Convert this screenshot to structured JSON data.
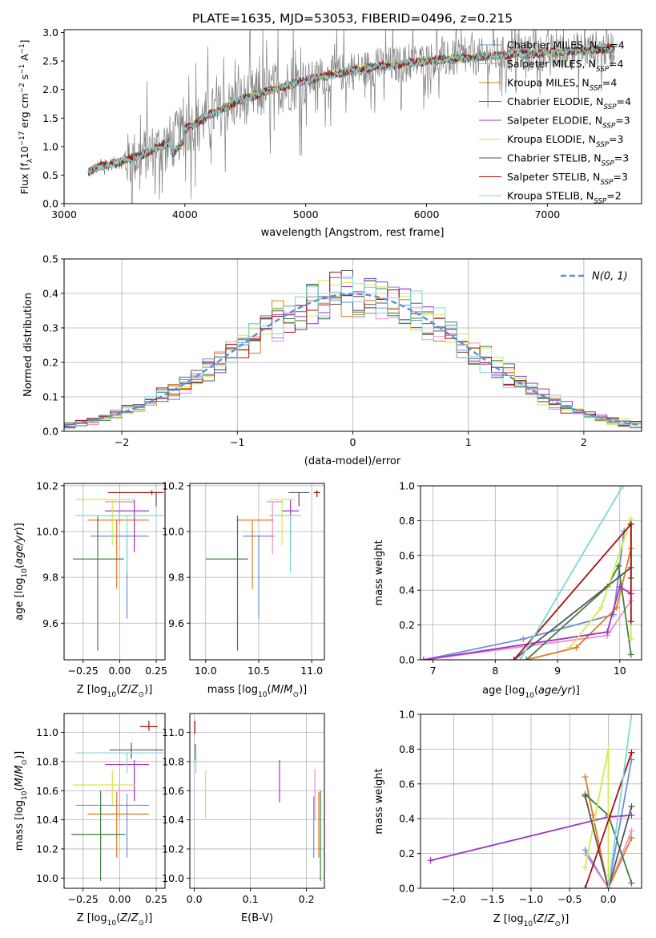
{
  "figure": {
    "title": "PLATE=1635, MJD=53053, FIBERID=0496, z=0.215"
  },
  "colors": {
    "Chabrier MILES": "#6a8fd6",
    "Salpeter MILES": "#ee8ed0",
    "Kroupa MILES": "#e07a1f",
    "Chabrier ELODIE": "#3f7f3f",
    "Salpeter ELODIE": "#a032c0",
    "Kroupa ELODIE": "#d2ea4a",
    "Chabrier STELIB": "#555555",
    "Salpeter STELIB": "#a81010",
    "Kroupa STELIB": "#7dd8d8",
    "data": "#808080",
    "normal": "#5b8fd6"
  },
  "chart_data": [
    {
      "id": "spectrum",
      "type": "line",
      "xlabel": "wavelength [Angstrom, rest frame]",
      "ylabel": "Flux [fλ10⁻¹⁷ erg cm⁻² s⁻¹ A⁻¹]",
      "xlim": [
        3000,
        7780
      ],
      "ylim": [
        0,
        3.05
      ],
      "xticks": [
        3000,
        4000,
        5000,
        6000,
        7000
      ],
      "yticks": [
        0.0,
        0.5,
        1.0,
        1.5,
        2.0,
        2.5,
        3.0
      ],
      "legend_position": "top-right",
      "legend": [
        "Chabrier MILES, N_SSP=4",
        "Salpeter MILES, N_SSP=4",
        "Kroupa MILES, N_SSP=4",
        "Chabrier ELODIE, N_SSP=4",
        "Salpeter ELODIE, N_SSP=3",
        "Kroupa ELODIE, N_SSP=3",
        "Chabrier STELIB, N_SSP=3",
        "Salpeter STELIB, N_SSP=3",
        "Kroupa STELIB, N_SSP=2"
      ],
      "continuum_model": {
        "x": [
          3200,
          3300,
          3500,
          3700,
          3900,
          4000,
          4200,
          4500,
          4800,
          5000,
          5300,
          5600,
          6000,
          6300,
          6600,
          7000,
          7400,
          7560
        ],
        "y": [
          0.55,
          0.65,
          0.75,
          0.9,
          1.1,
          1.3,
          1.55,
          1.85,
          2.05,
          2.15,
          2.3,
          2.4,
          2.5,
          2.55,
          2.6,
          2.65,
          2.7,
          2.72
        ]
      },
      "data_noise_amplitude": 0.6,
      "data_x_range": [
        3200,
        7560
      ]
    },
    {
      "id": "residuals",
      "type": "histogram",
      "xlabel": "(data-model)/error",
      "ylabel": "Normed distribution",
      "xlim": [
        -2.5,
        2.5
      ],
      "ylim": [
        0,
        0.5
      ],
      "xticks": [
        -2,
        -1,
        0,
        1,
        2
      ],
      "yticks": [
        0.0,
        0.1,
        0.2,
        0.3,
        0.4,
        0.5
      ],
      "legend": [
        "𝒩(0, 1)"
      ],
      "legend_position": "top-right",
      "bin_width": 0.1
    },
    {
      "id": "age_vs_Z",
      "type": "errorbar",
      "xlabel": "Z [log₁₀(Z/Z⊙)]",
      "ylabel": "age  [log₁₀(age/yr)]",
      "xlim": [
        -0.38,
        0.31
      ],
      "ylim": [
        9.44,
        10.21
      ],
      "xticks": [
        -0.25,
        0.0,
        0.25
      ],
      "xticklabels": [
        "−0.25",
        "0.00",
        "0.25"
      ],
      "yticks": [
        9.6,
        9.8,
        10.0,
        10.2
      ],
      "points": [
        {
          "model": "Chabrier MILES",
          "x": 0.05,
          "xerr": [
            0.25,
            0.15
          ],
          "y": 9.98,
          "yerr": [
            0.36,
            0.0
          ]
        },
        {
          "model": "Salpeter MILES",
          "x": 0.0,
          "xerr": [
            0.1,
            0.1
          ],
          "y": 10.13,
          "yerr": [
            0.1,
            0.0
          ]
        },
        {
          "model": "Kroupa MILES",
          "x": -0.02,
          "xerr": [
            0.2,
            0.22
          ],
          "y": 10.05,
          "yerr": [
            0.3,
            0.0
          ]
        },
        {
          "model": "Chabrier ELODIE",
          "x": -0.15,
          "xerr": [
            0.17,
            0.18
          ],
          "y": 9.88,
          "yerr": [
            0.4,
            0.19
          ]
        },
        {
          "model": "Salpeter ELODIE",
          "x": 0.1,
          "xerr": [
            0.2,
            0.1
          ],
          "y": 10.09,
          "yerr": [
            0.18,
            0.05
          ]
        },
        {
          "model": "Kroupa ELODIE",
          "x": -0.05,
          "xerr": [
            0.25,
            0.15
          ],
          "y": 10.14,
          "yerr": [
            0.2,
            0.0
          ]
        },
        {
          "model": "Chabrier STELIB",
          "x": 0.25,
          "xerr": [
            0.05,
            0.05
          ],
          "y": 10.17,
          "yerr": [
            0.06,
            0.0
          ]
        },
        {
          "model": "Salpeter STELIB",
          "x": 0.22,
          "xerr": [
            0.3,
            0.08
          ],
          "y": 10.17,
          "yerr": [
            0.01,
            0.01
          ]
        },
        {
          "model": "Kroupa STELIB",
          "x": 0.05,
          "xerr": [
            0.35,
            0.25
          ],
          "y": 10.07,
          "yerr": [
            0.25,
            0.0
          ]
        }
      ]
    },
    {
      "id": "age_vs_mass",
      "type": "errorbar",
      "xlabel": "mass [log₁₀(M/M⊙)]",
      "ylabel": "",
      "xlim": [
        9.85,
        11.12
      ],
      "ylim": [
        9.44,
        10.21
      ],
      "xticks": [
        10.0,
        10.5,
        11.0
      ],
      "xticklabels": [
        "10.0",
        "10.5",
        "11.0"
      ],
      "yticks": [
        9.6,
        9.8,
        10.0,
        10.2
      ],
      "points": [
        {
          "model": "Chabrier MILES",
          "x": 10.5,
          "xerr": [
            0.15,
            0.15
          ],
          "y": 9.98,
          "yerr": [
            0.36,
            0.0
          ]
        },
        {
          "model": "Salpeter MILES",
          "x": 10.63,
          "xerr": [
            0.05,
            0.1
          ],
          "y": 10.13,
          "yerr": [
            0.23,
            0.0
          ]
        },
        {
          "model": "Kroupa MILES",
          "x": 10.44,
          "xerr": [
            0.15,
            0.2
          ],
          "y": 10.05,
          "yerr": [
            0.3,
            0.0
          ]
        },
        {
          "model": "Chabrier ELODIE",
          "x": 10.3,
          "xerr": [
            0.3,
            0.1
          ],
          "y": 9.88,
          "yerr": [
            0.4,
            0.19
          ]
        },
        {
          "model": "Salpeter ELODIE",
          "x": 10.8,
          "xerr": [
            0.08,
            0.08
          ],
          "y": 10.09,
          "yerr": [
            0.18,
            0.05
          ]
        },
        {
          "model": "Kroupa ELODIE",
          "x": 10.72,
          "xerr": [
            0.12,
            0.12
          ],
          "y": 10.14,
          "yerr": [
            0.2,
            0.0
          ]
        },
        {
          "model": "Chabrier STELIB",
          "x": 10.88,
          "xerr": [
            0.1,
            0.1
          ],
          "y": 10.17,
          "yerr": [
            0.06,
            0.0
          ]
        },
        {
          "model": "Salpeter STELIB",
          "x": 11.05,
          "xerr": [
            0.03,
            0.03
          ],
          "y": 10.17,
          "yerr": [
            0.02,
            0.01
          ]
        },
        {
          "model": "Kroupa STELIB",
          "x": 10.8,
          "xerr": [
            0.2,
            0.1
          ],
          "y": 10.07,
          "yerr": [
            0.25,
            0.0
          ]
        }
      ]
    },
    {
      "id": "massweight_vs_age",
      "type": "line",
      "xlabel": "age  [log₁₀(age/yr)]",
      "ylabel": "mass weight",
      "xlim": [
        6.8,
        10.35
      ],
      "ylim": [
        0,
        1.0
      ],
      "xticks": [
        7,
        8,
        9,
        10
      ],
      "yticks": [
        0.0,
        0.2,
        0.4,
        0.6,
        0.8,
        1.0
      ],
      "series": [
        {
          "model": "Chabrier MILES",
          "x": [
            6.85,
            8.45,
            9.9,
            10.07
          ],
          "y": [
            0.0,
            0.12,
            0.26,
            0.74
          ]
        },
        {
          "model": "Salpeter MILES",
          "x": [
            6.85,
            9.8,
            10.18,
            10.18
          ],
          "y": [
            0.0,
            0.14,
            0.34,
            0.4
          ]
        },
        {
          "model": "Kroupa MILES",
          "x": [
            8.5,
            9.3,
            9.95,
            10.18
          ],
          "y": [
            0.0,
            0.07,
            0.3,
            0.64
          ]
        },
        {
          "model": "Chabrier ELODIE",
          "x": [
            8.5,
            9.8,
            9.98,
            10.18
          ],
          "y": [
            0.0,
            0.42,
            0.54,
            0.03
          ]
        },
        {
          "model": "Salpeter ELODIE",
          "x": [
            6.85,
            9.8,
            10.0,
            10.18
          ],
          "y": [
            0.0,
            0.16,
            0.42,
            0.38
          ]
        },
        {
          "model": "Kroupa ELODIE",
          "x": [
            9.2,
            9.7,
            10.18,
            10.18
          ],
          "y": [
            0.07,
            0.3,
            0.81,
            0.12
          ]
        },
        {
          "model": "Chabrier STELIB",
          "x": [
            8.3,
            10.18,
            10.18,
            10.18
          ],
          "y": [
            0.0,
            0.53,
            0.47,
            0.78
          ]
        },
        {
          "model": "Salpeter STELIB",
          "x": [
            8.3,
            10.18,
            10.18
          ],
          "y": [
            0.0,
            0.78,
            0.22
          ]
        },
        {
          "model": "Kroupa STELIB",
          "x": [
            8.4,
            10.05
          ],
          "y": [
            0.0,
            1.0
          ]
        }
      ]
    },
    {
      "id": "mass_vs_Z",
      "type": "errorbar",
      "xlabel": "Z [log₁₀(Z/Z⊙)]",
      "ylabel": "mass [log₁₀(M/M⊙)]",
      "xlim": [
        -0.38,
        0.31
      ],
      "ylim": [
        9.93,
        11.13
      ],
      "xticks": [
        -0.25,
        0.0,
        0.25
      ],
      "xticklabels": [
        "−0.25",
        "0.00",
        "0.25"
      ],
      "yticks": [
        10.0,
        10.2,
        10.4,
        10.6,
        10.8,
        11.0
      ],
      "points": [
        {
          "model": "Chabrier MILES",
          "x": 0.05,
          "xerr": [
            0.35,
            0.15
          ],
          "y": 10.5,
          "yerr": [
            0.36,
            0.08
          ]
        },
        {
          "model": "Salpeter MILES",
          "x": 0.0,
          "xerr": [
            0.1,
            0.1
          ],
          "y": 10.6,
          "yerr": [
            0.2,
            0.06
          ]
        },
        {
          "model": "Kroupa MILES",
          "x": -0.02,
          "xerr": [
            0.2,
            0.22
          ],
          "y": 10.44,
          "yerr": [
            0.3,
            0.15
          ]
        },
        {
          "model": "Chabrier ELODIE",
          "x": -0.13,
          "xerr": [
            0.2,
            0.17
          ],
          "y": 10.3,
          "yerr": [
            0.32,
            0.3
          ]
        },
        {
          "model": "Salpeter ELODIE",
          "x": 0.1,
          "xerr": [
            0.2,
            0.1
          ],
          "y": 10.78,
          "yerr": [
            0.25,
            0.03
          ]
        },
        {
          "model": "Kroupa ELODIE",
          "x": -0.05,
          "xerr": [
            0.27,
            0.15
          ],
          "y": 10.64,
          "yerr": [
            0.14,
            0.1
          ]
        },
        {
          "model": "Chabrier STELIB",
          "x": 0.08,
          "xerr": [
            0.15,
            0.22
          ],
          "y": 10.88,
          "yerr": [
            0.06,
            0.05
          ]
        },
        {
          "model": "Salpeter STELIB",
          "x": 0.2,
          "xerr": [
            0.06,
            0.06
          ],
          "y": 11.04,
          "yerr": [
            0.03,
            0.04
          ]
        },
        {
          "model": "Kroupa STELIB",
          "x": 0.05,
          "xerr": [
            0.35,
            0.25
          ],
          "y": 10.86,
          "yerr": [
            0.14,
            0.0
          ]
        }
      ]
    },
    {
      "id": "mass_vs_EBV",
      "type": "errorbar",
      "xlabel": "E(B-V)",
      "ylabel": "",
      "xlim": [
        -0.008,
        0.232
      ],
      "ylim": [
        9.93,
        11.13
      ],
      "xticks": [
        0.0,
        0.1,
        0.2
      ],
      "xticklabels": [
        "0.0",
        "0.1",
        "0.2"
      ],
      "yticks": [
        10.0,
        10.2,
        10.4,
        10.6,
        10.8,
        11.0
      ],
      "points": [
        {
          "model": "Chabrier MILES",
          "x": 0.213,
          "xerr": [
            0,
            0
          ],
          "y": 10.5,
          "yerr": [
            0.36,
            0.06
          ]
        },
        {
          "model": "Salpeter MILES",
          "x": 0.215,
          "xerr": [
            0,
            0
          ],
          "y": 10.6,
          "yerr": [
            0.2,
            0.15
          ]
        },
        {
          "model": "Kroupa MILES",
          "x": 0.222,
          "xerr": [
            0,
            0
          ],
          "y": 10.44,
          "yerr": [
            0.3,
            0.15
          ]
        },
        {
          "model": "Chabrier ELODIE",
          "x": 0.225,
          "xerr": [
            0,
            0
          ],
          "y": 10.3,
          "yerr": [
            0.32,
            0.3
          ]
        },
        {
          "model": "Salpeter ELODIE",
          "x": 0.152,
          "xerr": [
            0,
            0
          ],
          "y": 10.66,
          "yerr": [
            0.14,
            0.15
          ]
        },
        {
          "model": "Kroupa ELODIE",
          "x": 0.02,
          "xerr": [
            0,
            0
          ],
          "y": 10.58,
          "yerr": [
            0.17,
            0.16
          ]
        },
        {
          "model": "Chabrier STELIB",
          "x": 0.002,
          "xerr": [
            0,
            0
          ],
          "y": 10.85,
          "yerr": [
            0.04,
            0.07
          ]
        },
        {
          "model": "Salpeter STELIB",
          "x": 0.001,
          "xerr": [
            0,
            0
          ],
          "y": 11.03,
          "yerr": [
            0.04,
            0.05
          ]
        },
        {
          "model": "Kroupa STELIB",
          "x": 0.003,
          "xerr": [
            0,
            0
          ],
          "y": 10.82,
          "yerr": [
            0.1,
            0.06
          ]
        }
      ]
    },
    {
      "id": "massweight_vs_Z",
      "type": "line",
      "xlabel": "Z [log₁₀(Z/Z⊙)]",
      "ylabel": "mass weight",
      "xlim": [
        -2.43,
        0.43
      ],
      "ylim": [
        0,
        1.0
      ],
      "xticks": [
        -2.0,
        -1.5,
        -1.0,
        -0.5,
        0.0
      ],
      "xticklabels": [
        "−2.0",
        "−1.5",
        "−1.0",
        "−0.5",
        "0.0"
      ],
      "yticks": [
        0.0,
        0.2,
        0.4,
        0.6,
        0.8,
        1.0
      ],
      "series": [
        {
          "model": "Chabrier MILES",
          "x": [
            -0.3,
            0.0,
            0.3
          ],
          "y": [
            0.22,
            0.0,
            0.74
          ]
        },
        {
          "model": "Salpeter MILES",
          "x": [
            -0.3,
            0.0,
            0.3
          ],
          "y": [
            0.2,
            0.0,
            0.33
          ]
        },
        {
          "model": "Kroupa MILES",
          "x": [
            -0.3,
            -0.2,
            0.0,
            0.3
          ],
          "y": [
            0.64,
            0.42,
            0.0,
            0.29
          ]
        },
        {
          "model": "Chabrier ELODIE",
          "x": [
            -0.3,
            0.0,
            0.3
          ],
          "y": [
            0.54,
            0.42,
            0.03
          ]
        },
        {
          "model": "Salpeter ELODIE",
          "x": [
            -2.3,
            0.0,
            0.3
          ],
          "y": [
            0.16,
            0.41,
            0.42
          ]
        },
        {
          "model": "Kroupa ELODIE",
          "x": [
            -0.3,
            0.0,
            0.0
          ],
          "y": [
            0.12,
            0.8,
            0.07
          ]
        },
        {
          "model": "Chabrier STELIB",
          "x": [
            -0.3,
            0.0,
            0.3
          ],
          "y": [
            0.53,
            0.0,
            0.47
          ]
        },
        {
          "model": "Salpeter STELIB",
          "x": [
            -0.3,
            0.3
          ],
          "y": [
            0.0,
            0.78
          ]
        },
        {
          "model": "Kroupa STELIB",
          "x": [
            0.0,
            0.3
          ],
          "y": [
            0.0,
            1.0
          ]
        }
      ]
    }
  ]
}
